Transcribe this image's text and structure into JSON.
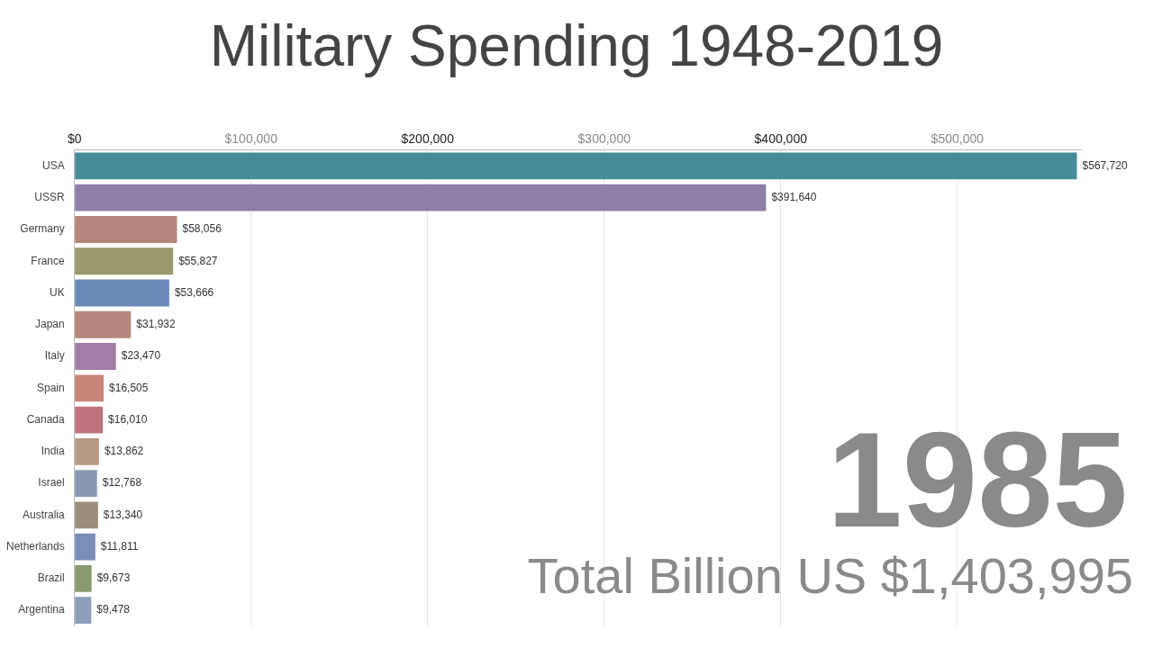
{
  "chart_data": {
    "type": "bar",
    "title": "Military Spending 1948-2019",
    "orientation": "horizontal",
    "annotations": [
      "1985",
      "Total Billion US $1,403,995"
    ],
    "categories": [
      "USA",
      "USSR",
      "Germany",
      "France",
      "UK",
      "Japan",
      "Italy",
      "Spain",
      "Canada",
      "India",
      "Israel",
      "Australia",
      "Netherlands",
      "Brazil",
      "Argentina"
    ],
    "values": [
      567720,
      391640,
      58056,
      55827,
      53666,
      31932,
      23470,
      16505,
      16010,
      13862,
      12768,
      13340,
      11811,
      9673,
      9478
    ],
    "value_labels": [
      "$567,720",
      "$391,640",
      "$58,056",
      "$55,827",
      "$53,666",
      "$31,932",
      "$23,470",
      "$16,505",
      "$16,010",
      "$13,862",
      "$12,768",
      "$13,340",
      "$11,811",
      "$9,673",
      "$9,478"
    ],
    "colors": [
      "#468c98",
      "#8e7fa8",
      "#b5877b",
      "#9a9a6e",
      "#6a8bb8",
      "#b5877b",
      "#a27ca8",
      "#c8857a",
      "#c0727e",
      "#b79a83",
      "#8898b0",
      "#9a8e7a",
      "#7a8cb8",
      "#8a9a70",
      "#8ba0b8"
    ],
    "xlim": [
      0,
      570000
    ],
    "xticks": [
      {
        "value": 0,
        "label": "$0"
      },
      {
        "value": 100000,
        "label": "$100,000"
      },
      {
        "value": 200000,
        "label": "$200,000"
      },
      {
        "value": 300000,
        "label": "$300,000"
      },
      {
        "value": 400000,
        "label": "$400,000"
      },
      {
        "value": 500000,
        "label": "$500,000"
      }
    ],
    "grid": true,
    "data_labels": true
  }
}
